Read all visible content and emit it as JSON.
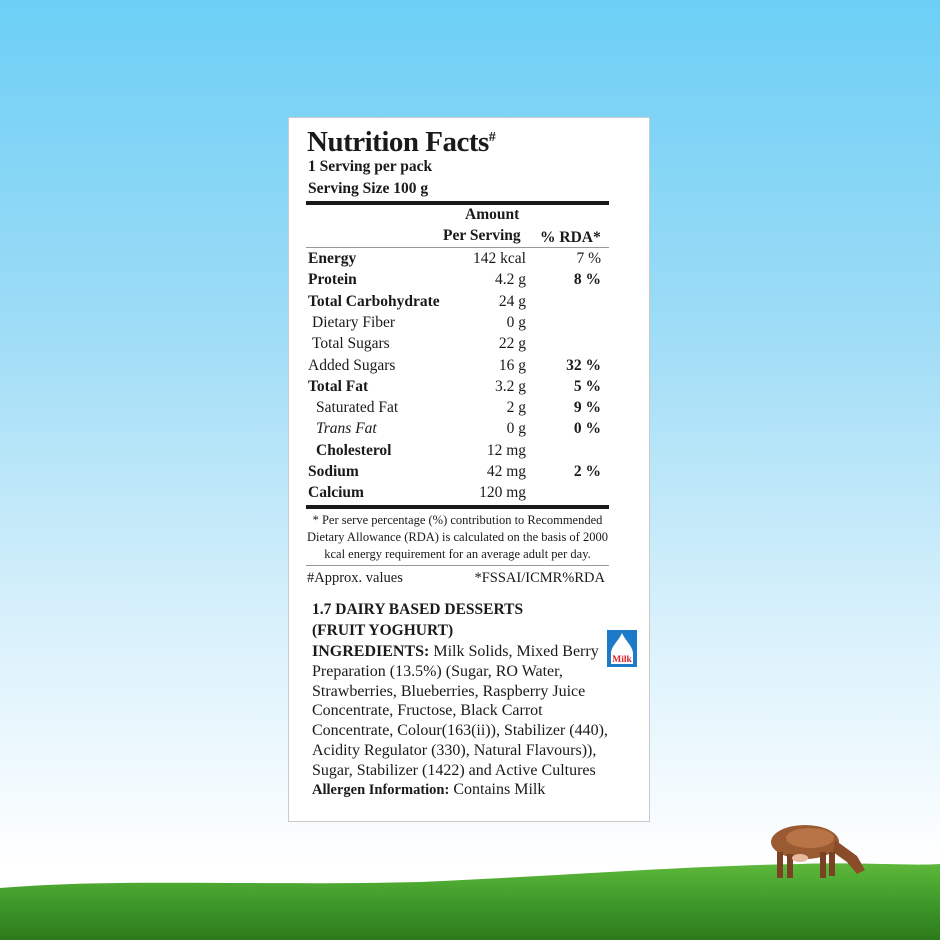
{
  "panel": {
    "title": "Nutrition Facts",
    "title_mark": "#",
    "servings": "1 Serving per pack",
    "serving_size": "Serving Size 100 g",
    "col_amount_1": "Amount",
    "col_amount_2": "Per Serving",
    "col_rda": "% RDA*",
    "rows": [
      {
        "name": "Energy",
        "amount": "142 kcal",
        "rda": "7 %"
      },
      {
        "name": "Protein",
        "amount": "4.2 g",
        "rda": "8 %"
      },
      {
        "name": "Total Carbohydrate",
        "amount": "24 g",
        "rda": ""
      },
      {
        "name": "Dietary Fiber",
        "amount": "0 g",
        "rda": ""
      },
      {
        "name": "Total Sugars",
        "amount": "22 g",
        "rda": ""
      },
      {
        "name": "Added Sugars",
        "amount": "16 g",
        "rda": "32 %"
      },
      {
        "name": "Total Fat",
        "amount": "3.2 g",
        "rda": "5 %"
      },
      {
        "name": "Saturated Fat",
        "amount": "2 g",
        "rda": "9 %"
      },
      {
        "name": "Trans Fat",
        "amount": "0 g",
        "rda": "0 %"
      },
      {
        "name": "Cholesterol",
        "amount": "12 mg",
        "rda": ""
      },
      {
        "name": "Sodium",
        "amount": "42 mg",
        "rda": "2 %"
      },
      {
        "name": "Calcium",
        "amount": "120 mg",
        "rda": ""
      }
    ],
    "footnote": "* Per serve percentage (%) contribution to Recommended Dietary Allowance (RDA) is calculated on the basis of 2000 kcal energy requirement for an average adult per day.",
    "approx": "#Approx. values",
    "source": "*FSSAI/ICMR%RDA",
    "category_1": "1.7 DAIRY BASED DESSERTS",
    "category_2": "(FRUIT YOGHURT)",
    "ingredients_label": "INGREDIENTS:",
    "ingredients": "Milk Solids, Mixed Berry Preparation (13.5%) (Sugar, RO Water, Strawberries, Blueberries, Raspberry Juice Concentrate, Fructose, Black Carrot Concentrate, Colour(163(ii)), Stabilizer (440), Acidity Regulator (330), Natural Flavours)), Sugar, Stabilizer (1422) and Active Cultures",
    "allergen_label": "Allergen Information:",
    "allergen": "Contains Milk",
    "milk_icon_label": "Milk"
  },
  "colors": {
    "sky_top": "#6ccff6",
    "grass": "#3f9a2a",
    "milk_icon_blue": "#1d7ac9",
    "milk_icon_red": "#d8232a"
  }
}
